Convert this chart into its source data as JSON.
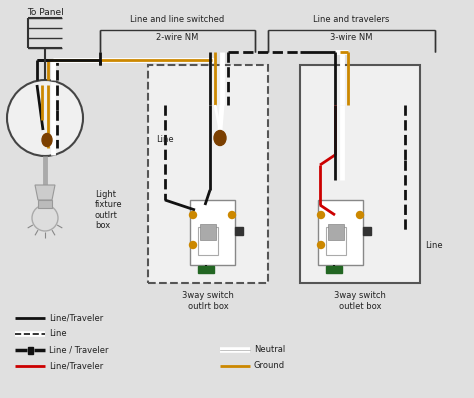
{
  "bg_color": "#e0e0e0",
  "panel_label": "To Panel",
  "label_line_switched": "Line and line switched",
  "label_2wire": "2-wire NM",
  "label_line_travelers": "Line and travelers",
  "label_3wire": "3-wire NM",
  "label_light_fixture": "Light\nfixture\noutlrt\nbox",
  "label_3way1": "3way switch\noutlrt box",
  "label_3way2": "3way switch\noutlet box",
  "label_line1": "Line",
  "label_line2": "Line"
}
